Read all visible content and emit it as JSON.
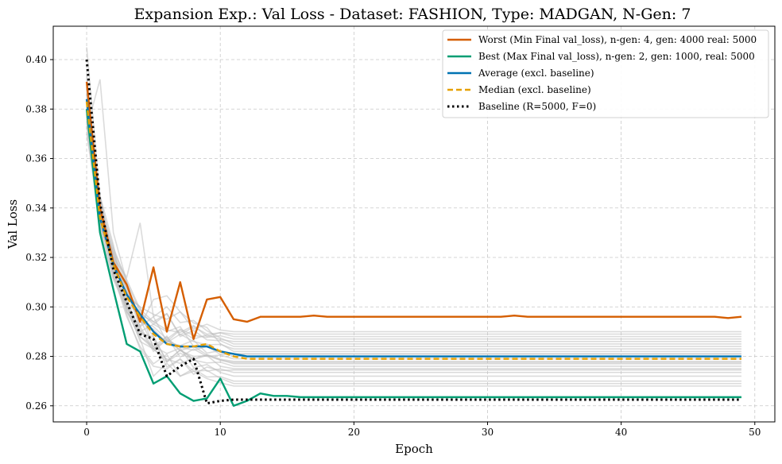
{
  "chart_data": {
    "type": "line",
    "title": "Expansion Exp.: Val Loss - Dataset: FASHION, Type: MADGAN, N-Gen: 7",
    "xlabel": "Epoch",
    "ylabel": "Val Loss",
    "xlim": [
      -2.5,
      51.5
    ],
    "ylim": [
      0.2535,
      0.4135
    ],
    "xticks": [
      0,
      10,
      20,
      30,
      40,
      50
    ],
    "yticks": [
      0.26,
      0.28,
      0.3,
      0.32,
      0.34,
      0.36,
      0.38,
      0.4
    ],
    "ytick_labels": [
      "0.26",
      "0.28",
      "0.30",
      "0.32",
      "0.34",
      "0.36",
      "0.38",
      "0.40"
    ],
    "grid": true,
    "legend_position": "top-right",
    "series": [
      {
        "name": "Worst (Min Final val_loss), n-gen: 4, gen: 4000 real: 5000",
        "color": "#d55e00",
        "style": "solid",
        "values": [
          0.391,
          0.34,
          0.318,
          0.309,
          0.294,
          0.316,
          0.29,
          0.31,
          0.287,
          0.303,
          0.304,
          0.295,
          0.294,
          0.296,
          0.296,
          0.296,
          0.296,
          0.2965,
          0.296,
          0.296,
          0.296,
          0.296,
          0.296,
          0.296,
          0.296,
          0.296,
          0.296,
          0.296,
          0.296,
          0.296,
          0.296,
          0.296,
          0.2965,
          0.296,
          0.296,
          0.296,
          0.296,
          0.296,
          0.296,
          0.296,
          0.296,
          0.296,
          0.296,
          0.296,
          0.296,
          0.296,
          0.296,
          0.296,
          0.2955,
          0.296
        ]
      },
      {
        "name": "Best (Max Final val_loss), n-gen: 2, gen: 1000, real: 5000",
        "color": "#009e73",
        "style": "solid",
        "values": [
          0.38,
          0.33,
          0.307,
          0.285,
          0.282,
          0.269,
          0.272,
          0.265,
          0.262,
          0.263,
          0.271,
          0.26,
          0.262,
          0.265,
          0.264,
          0.264,
          0.2635,
          0.2635,
          0.2635,
          0.2635,
          0.2635,
          0.2635,
          0.2635,
          0.2635,
          0.2635,
          0.2635,
          0.2635,
          0.2635,
          0.2635,
          0.2635,
          0.2635,
          0.2635,
          0.2635,
          0.2635,
          0.2635,
          0.2635,
          0.2635,
          0.2635,
          0.2635,
          0.2635,
          0.2635,
          0.2635,
          0.2635,
          0.2635,
          0.2635,
          0.2635,
          0.2635,
          0.2635,
          0.2635,
          0.2635
        ]
      },
      {
        "name": "Average (excl. baseline)",
        "color": "#0072b2",
        "style": "solid",
        "values": [
          0.384,
          0.336,
          0.317,
          0.305,
          0.297,
          0.29,
          0.285,
          0.284,
          0.284,
          0.284,
          0.282,
          0.281,
          0.28,
          0.28,
          0.28,
          0.28,
          0.28,
          0.28,
          0.28,
          0.28,
          0.28,
          0.28,
          0.28,
          0.28,
          0.28,
          0.28,
          0.28,
          0.28,
          0.28,
          0.28,
          0.28,
          0.28,
          0.28,
          0.28,
          0.28,
          0.28,
          0.28,
          0.28,
          0.28,
          0.28,
          0.28,
          0.28,
          0.28,
          0.28,
          0.28,
          0.28,
          0.28,
          0.28,
          0.28,
          0.28
        ]
      },
      {
        "name": "Median (excl. baseline)",
        "color": "#e6a000",
        "style": "dashed",
        "values": [
          0.383,
          0.336,
          0.317,
          0.304,
          0.296,
          0.289,
          0.285,
          0.284,
          0.284,
          0.285,
          0.282,
          0.28,
          0.279,
          0.279,
          0.279,
          0.279,
          0.279,
          0.279,
          0.279,
          0.279,
          0.279,
          0.279,
          0.279,
          0.279,
          0.279,
          0.279,
          0.279,
          0.279,
          0.279,
          0.279,
          0.279,
          0.279,
          0.279,
          0.279,
          0.279,
          0.279,
          0.279,
          0.279,
          0.279,
          0.279,
          0.279,
          0.279,
          0.279,
          0.279,
          0.279,
          0.279,
          0.279,
          0.279,
          0.279,
          0.279
        ]
      },
      {
        "name": "Baseline (R=5000, F=0)",
        "color": "#000000",
        "style": "dotted",
        "values": [
          0.4,
          0.342,
          0.315,
          0.302,
          0.289,
          0.287,
          0.272,
          0.276,
          0.279,
          0.261,
          0.262,
          0.2625,
          0.2625,
          0.2625,
          0.2625,
          0.2625,
          0.2625,
          0.2625,
          0.2625,
          0.2625,
          0.2625,
          0.2625,
          0.2625,
          0.2625,
          0.2625,
          0.2625,
          0.2625,
          0.2625,
          0.2625,
          0.2625,
          0.2625,
          0.2625,
          0.2625,
          0.2625,
          0.2625,
          0.2625,
          0.2625,
          0.2625,
          0.2625,
          0.2625,
          0.2625,
          0.2625,
          0.2625,
          0.2625,
          0.2625,
          0.2625,
          0.2625,
          0.2625,
          0.2625,
          0.2625
        ]
      }
    ],
    "background_runs": {
      "color": "#bdbdbd",
      "runs": [
        {
          "start": 0.405,
          "mid": [
            0.345,
            0.318,
            0.305,
            0.3
          ],
          "bump": 0.296,
          "final": 0.29
        },
        {
          "start": 0.372,
          "mid": [
            0.392,
            0.33,
            0.31,
            0.298
          ],
          "bump": 0.293,
          "final": 0.288
        },
        {
          "start": 0.378,
          "mid": [
            0.34,
            0.32,
            0.312,
            0.334
          ],
          "bump": 0.29,
          "final": 0.286
        },
        {
          "start": 0.388,
          "mid": [
            0.338,
            0.322,
            0.3,
            0.292
          ],
          "bump": 0.3,
          "final": 0.285
        },
        {
          "start": 0.37,
          "mid": [
            0.335,
            0.315,
            0.306,
            0.294
          ],
          "bump": 0.288,
          "final": 0.283
        },
        {
          "start": 0.394,
          "mid": [
            0.342,
            0.324,
            0.31,
            0.292
          ],
          "bump": 0.305,
          "final": 0.282
        },
        {
          "start": 0.382,
          "mid": [
            0.333,
            0.319,
            0.302,
            0.296
          ],
          "bump": 0.286,
          "final": 0.281
        },
        {
          "start": 0.376,
          "mid": [
            0.345,
            0.325,
            0.298,
            0.29
          ],
          "bump": 0.292,
          "final": 0.28
        },
        {
          "start": 0.386,
          "mid": [
            0.336,
            0.312,
            0.302,
            0.288
          ],
          "bump": 0.284,
          "final": 0.279
        },
        {
          "start": 0.379,
          "mid": [
            0.34,
            0.316,
            0.308,
            0.296
          ],
          "bump": 0.282,
          "final": 0.278
        },
        {
          "start": 0.39,
          "mid": [
            0.332,
            0.318,
            0.304,
            0.3
          ],
          "bump": 0.287,
          "final": 0.277
        },
        {
          "start": 0.374,
          "mid": [
            0.338,
            0.314,
            0.3,
            0.286
          ],
          "bump": 0.28,
          "final": 0.276
        },
        {
          "start": 0.384,
          "mid": [
            0.344,
            0.32,
            0.306,
            0.292
          ],
          "bump": 0.285,
          "final": 0.275
        },
        {
          "start": 0.381,
          "mid": [
            0.334,
            0.316,
            0.298,
            0.288
          ],
          "bump": 0.279,
          "final": 0.2735
        },
        {
          "start": 0.392,
          "mid": [
            0.337,
            0.322,
            0.309,
            0.295
          ],
          "bump": 0.283,
          "final": 0.272
        },
        {
          "start": 0.377,
          "mid": [
            0.339,
            0.313,
            0.296,
            0.284
          ],
          "bump": 0.277,
          "final": 0.27
        },
        {
          "start": 0.386,
          "mid": [
            0.336,
            0.317,
            0.303,
            0.29
          ],
          "bump": 0.281,
          "final": 0.269
        },
        {
          "start": 0.373,
          "mid": [
            0.331,
            0.311,
            0.299,
            0.287
          ],
          "bump": 0.276,
          "final": 0.268
        },
        {
          "start": 0.389,
          "mid": [
            0.341,
            0.321,
            0.307,
            0.294
          ],
          "bump": 0.289,
          "final": 0.287
        },
        {
          "start": 0.38,
          "mid": [
            0.335,
            0.315,
            0.301,
            0.291
          ],
          "bump": 0.284,
          "final": 0.281
        },
        {
          "start": 0.383,
          "mid": [
            0.343,
            0.319,
            0.305,
            0.297
          ],
          "bump": 0.29,
          "final": 0.289
        },
        {
          "start": 0.375,
          "mid": [
            0.337,
            0.314,
            0.297,
            0.283
          ],
          "bump": 0.275,
          "final": 0.2745
        },
        {
          "start": 0.391,
          "mid": [
            0.339,
            0.323,
            0.311,
            0.299
          ],
          "bump": 0.294,
          "final": 0.284
        },
        {
          "start": 0.378,
          "mid": [
            0.333,
            0.312,
            0.3,
            0.289
          ],
          "bump": 0.282,
          "final": 0.2775
        }
      ]
    }
  }
}
